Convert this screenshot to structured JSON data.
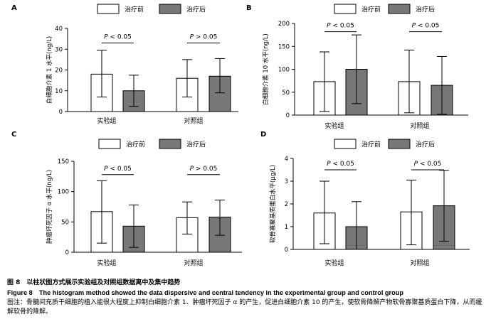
{
  "panels": [
    {
      "letter": "A",
      "ylabel": "白细胞介素 1 水平(ng/L)",
      "ylim": [
        0,
        40
      ],
      "ticks": [
        0,
        10,
        20,
        30,
        40
      ],
      "legend": [
        "治疗前",
        "治疗后"
      ],
      "categories": [
        "实验组",
        "对照组"
      ],
      "series": [
        {
          "name": "治疗前",
          "values": [
            18,
            16
          ],
          "err": [
            [
              7,
              29.5
            ],
            [
              7,
              25
            ]
          ]
        },
        {
          "name": "治疗后",
          "values": [
            10,
            17
          ],
          "err": [
            [
              2.5,
              17.5
            ],
            [
              9,
              25.5
            ]
          ]
        }
      ],
      "annotations": [
        "P < 0.05",
        "P > 0.05"
      ],
      "brackets": [
        33,
        33
      ]
    },
    {
      "letter": "B",
      "ylabel": "白细胞介素 10 水平(ng/L)",
      "ylim": [
        0,
        200
      ],
      "ticks": [
        0,
        50,
        100,
        150,
        200
      ],
      "legend": [
        "治疗前",
        "治疗后"
      ],
      "categories": [
        "实验组",
        "对照组"
      ],
      "series": [
        {
          "name": "治疗前",
          "values": [
            73,
            73
          ],
          "err": [
            [
              8,
              138
            ],
            [
              5,
              142
            ]
          ]
        },
        {
          "name": "治疗后",
          "values": [
            100,
            65
          ],
          "err": [
            [
              25,
              175
            ],
            [
              2,
              128
            ]
          ]
        }
      ],
      "annotations": [
        "P < 0.05",
        "P < 0.05"
      ],
      "brackets": [
        182,
        182
      ]
    },
    {
      "letter": "C",
      "ylabel": "肿瘤坏死因子 α 水平(ng/L)",
      "ylim": [
        0,
        150
      ],
      "ticks": [
        0,
        50,
        100,
        150
      ],
      "legend": [
        "治疗前",
        "治疗后"
      ],
      "categories": [
        "实验组",
        "对照组"
      ],
      "series": [
        {
          "name": "治疗前",
          "values": [
            67,
            57
          ],
          "err": [
            [
              15,
              118
            ],
            [
              30,
              83
            ]
          ]
        },
        {
          "name": "治疗后",
          "values": [
            43,
            58
          ],
          "err": [
            [
              8,
              78
            ],
            [
              28,
              86
            ]
          ]
        }
      ],
      "annotations": [
        "P < 0.05",
        "P > 0.05"
      ],
      "brackets": [
        128,
        128
      ]
    },
    {
      "letter": "D",
      "ylabel": "软骨寡聚基质蛋白水平(μg/L)",
      "ylim": [
        0,
        4
      ],
      "ticks": [
        0,
        1,
        2,
        3,
        4
      ],
      "legend": [
        "治疗前",
        "治疗后"
      ],
      "categories": [
        "实验组",
        "对照组"
      ],
      "series": [
        {
          "name": "治疗前",
          "values": [
            1.6,
            1.65
          ],
          "err": [
            [
              0.25,
              3.0
            ],
            [
              0.2,
              3.05
            ]
          ]
        },
        {
          "name": "治疗后",
          "values": [
            1.0,
            1.92
          ],
          "err": [
            [
              0.0,
              2.1
            ],
            [
              0.35,
              3.48
            ]
          ]
        }
      ],
      "annotations": [
        "P < 0.05",
        "P < 0.05"
      ],
      "brackets": [
        3.5,
        3.5
      ]
    }
  ],
  "chart_data": [
    {
      "type": "bar",
      "categories": [
        "实验组",
        "对照组"
      ],
      "ylabel": "白细胞介素 1 水平(ng/L)",
      "ylim": [
        0,
        40
      ],
      "series": [
        {
          "name": "治疗前",
          "values": [
            18,
            16
          ]
        },
        {
          "name": "治疗后",
          "values": [
            10,
            17
          ]
        }
      ],
      "annotations": [
        "P < 0.05",
        "P > 0.05"
      ]
    },
    {
      "type": "bar",
      "categories": [
        "实验组",
        "对照组"
      ],
      "ylabel": "白细胞介素 10 水平(ng/L)",
      "ylim": [
        0,
        200
      ],
      "series": [
        {
          "name": "治疗前",
          "values": [
            73,
            73
          ]
        },
        {
          "name": "治疗后",
          "values": [
            100,
            65
          ]
        }
      ],
      "annotations": [
        "P < 0.05",
        "P < 0.05"
      ]
    },
    {
      "type": "bar",
      "categories": [
        "实验组",
        "对照组"
      ],
      "ylabel": "肿瘤坏死因子 α 水平(ng/L)",
      "ylim": [
        0,
        150
      ],
      "series": [
        {
          "name": "治疗前",
          "values": [
            67,
            57
          ]
        },
        {
          "name": "治疗后",
          "values": [
            43,
            58
          ]
        }
      ],
      "annotations": [
        "P < 0.05",
        "P > 0.05"
      ]
    },
    {
      "type": "bar",
      "categories": [
        "实验组",
        "对照组"
      ],
      "ylabel": "软骨寡聚基质蛋白水平(μg/L)",
      "ylim": [
        0,
        4
      ],
      "series": [
        {
          "name": "治疗前",
          "values": [
            1.6,
            1.65
          ]
        },
        {
          "name": "治疗后",
          "values": [
            1.0,
            1.92
          ]
        }
      ],
      "annotations": [
        "P < 0.05",
        "P < 0.05"
      ]
    }
  ],
  "colors": {
    "before": "#ffffff",
    "after": "#777777",
    "stroke": "#000000"
  },
  "caption": {
    "title": "图 8　以柱状图方式展示实验组及对照组数据离中及集中趋势",
    "english": "Figure 8　The histogram method showed the data dispersive and central tendency in the experimental group and control group",
    "note": "图注：骨髓间充质干细胞的植入能很大程度上抑制白细胞介素 1、肿瘤坏死因子 α 的产生，促进白细胞介素 10 的产生，使软骨降解产物软骨寡聚基质蛋白下降，从而缓解软骨的降解。"
  }
}
